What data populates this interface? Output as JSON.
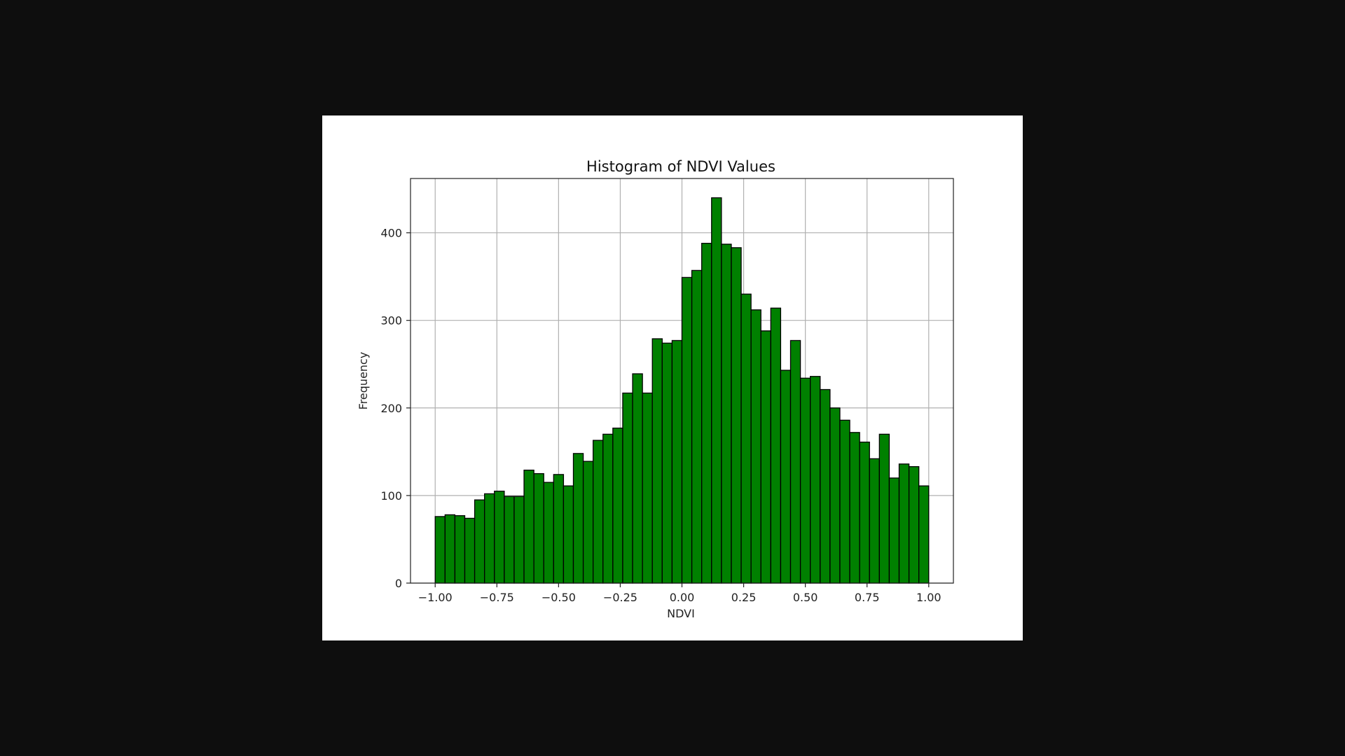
{
  "chart_data": {
    "type": "bar",
    "title": "Histogram of NDVI Values",
    "xlabel": "NDVI",
    "ylabel": "Frequency",
    "xlim": [
      -1.1,
      1.1
    ],
    "ylim": [
      0,
      462
    ],
    "grid": true,
    "bar_color": "#008000",
    "edge_color": "#000000",
    "bin_edges_range": [
      -1.0,
      1.0
    ],
    "bin_count": 50,
    "values": [
      76,
      78,
      77,
      74,
      95,
      102,
      105,
      99,
      99,
      129,
      125,
      115,
      124,
      111,
      148,
      139,
      163,
      170,
      177,
      217,
      239,
      217,
      279,
      274,
      277,
      349,
      357,
      388,
      440,
      387,
      383,
      330,
      312,
      288,
      314,
      243,
      277,
      234,
      236,
      221,
      200,
      186,
      172,
      161,
      142,
      170,
      120,
      136,
      133,
      111
    ],
    "x_ticks": [
      -1.0,
      -0.75,
      -0.5,
      -0.25,
      0.0,
      0.25,
      0.5,
      0.75,
      1.0
    ],
    "x_tick_labels": [
      "−1.00",
      "−0.75",
      "−0.50",
      "−0.25",
      "0.00",
      "0.25",
      "0.50",
      "0.75",
      "1.00"
    ],
    "y_ticks": [
      0,
      100,
      200,
      300,
      400
    ],
    "y_tick_labels": [
      "0",
      "100",
      "200",
      "300",
      "400"
    ]
  }
}
